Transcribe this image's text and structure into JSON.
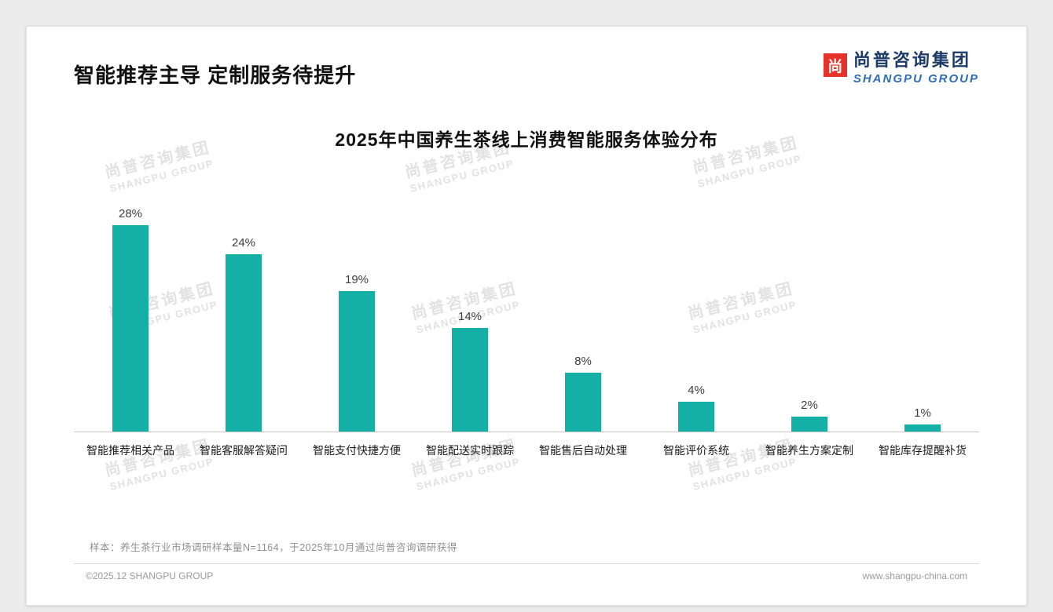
{
  "page": {
    "title": "智能推荐主导 定制服务待提升",
    "sample_note": "样本：养生茶行业市场调研样本量N=1164，于2025年10月通过尚普咨询调研获得",
    "footer_left": "©2025.12 SHANGPU GROUP",
    "footer_right": "www.shangpu-china.com"
  },
  "logo": {
    "mark": "尚",
    "cn": "尚普咨询集团",
    "en": "SHANGPU GROUP",
    "mark_color": "#e5332a",
    "cn_color": "#1c3a66",
    "en_color": "#2f6db5"
  },
  "watermark": {
    "cn": "尚普咨询集团",
    "en": "SHANGPU GROUP"
  },
  "chart_data": {
    "type": "bar",
    "title": "2025年中国养生茶线上消费智能服务体验分布",
    "categories": [
      "智能推荐相关产品",
      "智能客服解答疑问",
      "智能支付快捷方便",
      "智能配送实时跟踪",
      "智能售后自动处理",
      "智能评价系统",
      "智能养生方案定制",
      "智能库存提醒补货"
    ],
    "values": [
      28,
      24,
      19,
      14,
      8,
      4,
      2,
      1
    ],
    "unit": "%",
    "bar_color": "#14b0a5",
    "ylim": [
      0,
      30
    ],
    "xlabel": "",
    "ylabel": "",
    "grid": false,
    "legend": false
  }
}
